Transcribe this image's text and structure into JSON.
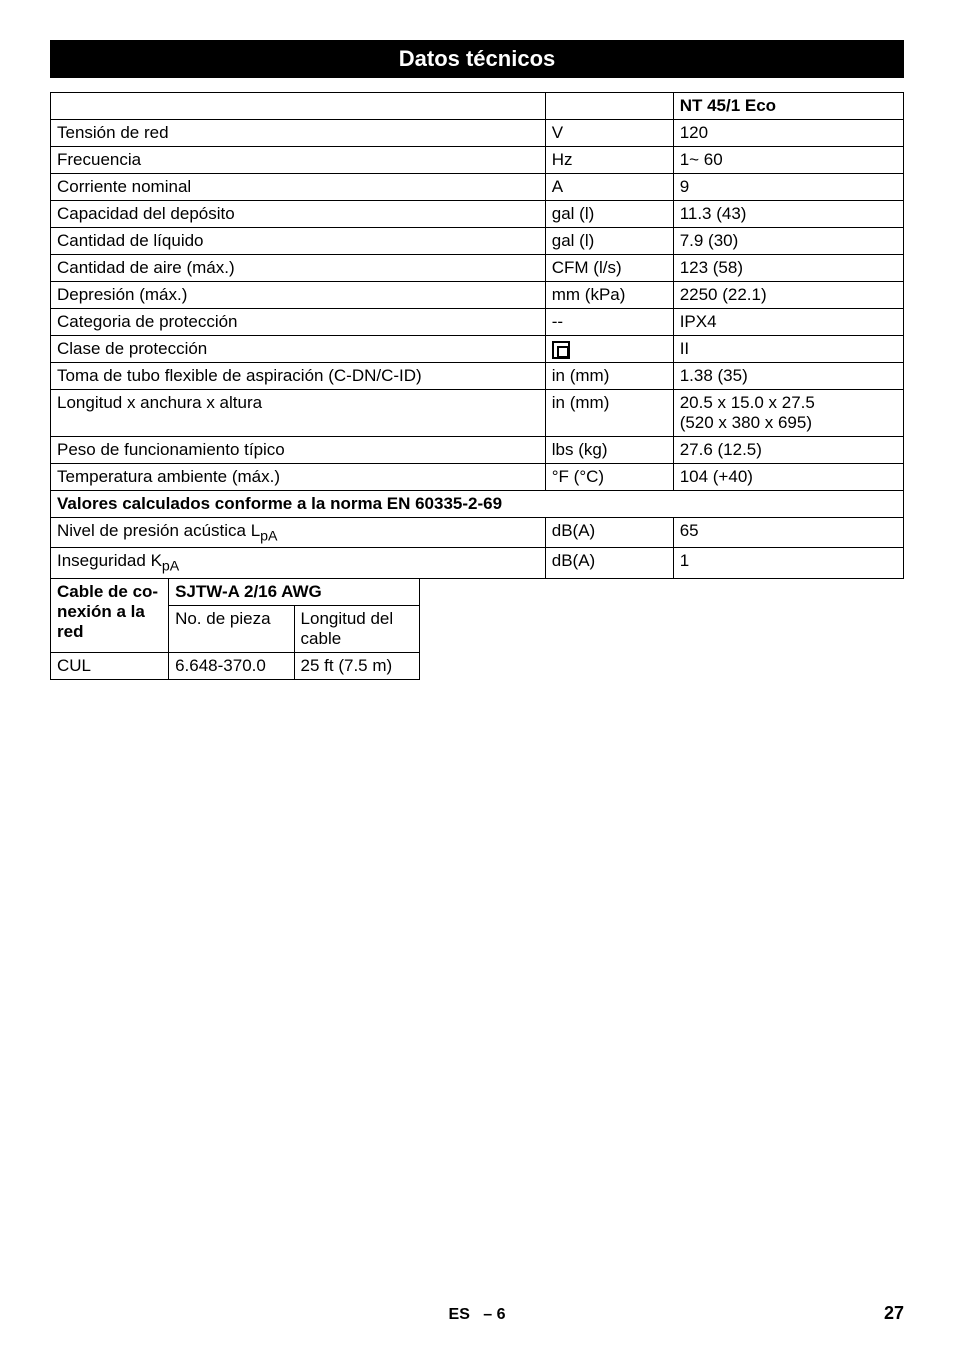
{
  "header": {
    "title": "Datos técnicos"
  },
  "model_header": "NT 45/1 Eco",
  "rows": [
    {
      "label": "Tensión de red",
      "unit": "V",
      "value": "120"
    },
    {
      "label": "Frecuencia",
      "unit": "Hz",
      "value": "1~ 60"
    },
    {
      "label": "Corriente nominal",
      "unit": "A",
      "value": "9"
    },
    {
      "label": "Capacidad del depósito",
      "unit": "gal (l)",
      "value": "11.3 (43)"
    },
    {
      "label": "Cantidad de líquido",
      "unit": "gal (l)",
      "value": "7.9 (30)"
    },
    {
      "label": "Cantidad de aire (máx.)",
      "unit": "CFM (l/s)",
      "value": "123 (58)"
    },
    {
      "label": "Depresión (máx.)",
      "unit": "mm (kPa)",
      "value": "2250 (22.1)"
    },
    {
      "label": "Categoria de protección",
      "unit": "--",
      "value": "IPX4"
    },
    {
      "label": "Clase de protección",
      "unit": "ICON",
      "value": "II"
    },
    {
      "label": "Toma de tubo flexible de aspiración (C-DN/C-ID)",
      "unit": "in (mm)",
      "value": "1.38 (35)"
    },
    {
      "label": "Longitud x anchura x altura",
      "unit": "in (mm)",
      "value": "20.5 x 15.0 x 27.5\n(520 x 380 x 695)"
    },
    {
      "label": "Peso de funcionamiento típico",
      "unit": "lbs (kg)",
      "value": "27.6 (12.5)"
    },
    {
      "label": "Temperatura ambiente (máx.)",
      "unit": "°F (°C)",
      "value": "104 (+40)"
    }
  ],
  "section2_title": "Valores calculados conforme a la norma EN 60335-2-69",
  "rows2": [
    {
      "label_html": "Nivel de presión acústica L<sub>pA</sub>",
      "unit": "dB(A)",
      "value": "65"
    },
    {
      "label_html": "Inseguridad K<sub>pA</sub>",
      "unit": "dB(A)",
      "value": "1"
    }
  ],
  "cable": {
    "title": "Cable de co-nexión a la red",
    "title_line1": "Cable de co-",
    "title_line2": "nexión a la red",
    "spec": "SJTW-A 2/16 AWG",
    "h_partno": "No. de pieza",
    "h_length": "Longitud del cable",
    "row_label": "CUL",
    "row_partno": "6.648-370.0",
    "row_length": "25 ft (7.5 m)"
  },
  "footer": {
    "lang": "ES",
    "page_section": "– 6",
    "page": "27"
  }
}
